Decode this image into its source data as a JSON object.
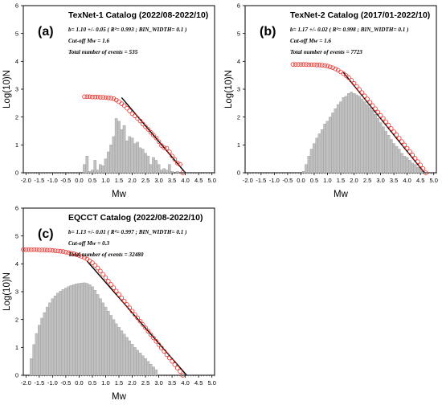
{
  "figure": {
    "background": "#ffffff"
  },
  "style": {
    "bar_fill": "#c0c0c0",
    "bar_stroke": "#8a8a8a",
    "circle_color": "#e8302a",
    "fit_color": "#000000"
  },
  "chart_data": [
    {
      "type": "bar",
      "panel": "(a)",
      "title": "TexNet-1 Catalog (2022/08-2022/10)",
      "stats": [
        "b= 1.10 +/- 0.05 ( R²= 0.993 ; BIN_WIDTH= 0.1 )",
        "Cut-off Mw = 1.6",
        "Total number of events = 535"
      ],
      "xlabel": "Mw",
      "ylabel": "Log(10)N",
      "xlim": [
        -2.1,
        5.1
      ],
      "ylim": [
        0,
        6
      ],
      "xticks": [
        "-2.0",
        "-1.5",
        "-1.0",
        "-0.5",
        "0.0",
        "0.5",
        "1.0",
        "1.5",
        "2.0",
        "2.5",
        "3.0",
        "3.5",
        "4.0",
        "4.5",
        "5.0"
      ],
      "yticks": [
        "0",
        "1",
        "2",
        "3",
        "4",
        "5",
        "6"
      ],
      "histogram": {
        "start": 0.2,
        "bin_width": 0.1,
        "values": [
          0.3,
          0.6,
          0.05,
          0.1,
          0.45,
          0.1,
          0.3,
          0.25,
          0.5,
          0.75,
          1.0,
          1.3,
          1.95,
          1.85,
          1.55,
          1.7,
          1.15,
          1.3,
          1.25,
          1.05,
          1.1,
          0.9,
          0.85,
          0.7,
          0.6,
          0.3,
          0.55,
          0.45,
          0.3,
          0.1,
          0.15,
          0.1,
          0.3,
          0.05,
          0.0,
          0.05,
          0.0,
          0.0
        ]
      },
      "cumulative": {
        "start": 0.2,
        "bin_width": 0.1,
        "values": [
          2.73,
          2.73,
          2.73,
          2.72,
          2.72,
          2.72,
          2.71,
          2.71,
          2.7,
          2.69,
          2.68,
          2.66,
          2.61,
          2.55,
          2.48,
          2.41,
          2.32,
          2.22,
          2.12,
          2.04,
          1.95,
          1.86,
          1.75,
          1.65,
          1.56,
          1.45,
          1.35,
          1.25,
          1.12,
          0.98,
          0.9,
          0.88,
          0.75,
          0.6,
          0.48,
          0.35,
          0.3,
          0.0
        ]
      },
      "fit": {
        "x": [
          1.6,
          4.0
        ],
        "y": [
          2.7,
          0.0
        ]
      }
    },
    {
      "type": "bar",
      "panel": "(b)",
      "title": "TexNet-2 Catalog (2017/01-2022/10)",
      "stats": [
        "b= 1.17 +/- 0.02 ( R²= 0.998 ; BIN_WIDTH= 0.1 )",
        "Cut-off Mw = 1.6",
        "Total number of events = 7723"
      ],
      "xlabel": "Mw",
      "ylabel": "Log(10)N",
      "xlim": [
        -2.1,
        5.1
      ],
      "ylim": [
        0,
        6
      ],
      "xticks": [
        "-2.0",
        "-1.5",
        "-1.0",
        "-0.5",
        "0.0",
        "0.5",
        "1.0",
        "1.5",
        "2.0",
        "2.5",
        "3.0",
        "3.5",
        "4.0",
        "4.5",
        "5.0"
      ],
      "yticks": [
        "0",
        "1",
        "2",
        "3",
        "4",
        "5",
        "6"
      ],
      "histogram": {
        "start": -0.3,
        "bin_width": 0.1,
        "values": [
          0.0,
          0.0,
          0.0,
          0.0,
          0.05,
          0.3,
          0.6,
          0.85,
          1.05,
          1.25,
          1.4,
          1.55,
          1.75,
          1.85,
          2.0,
          2.15,
          2.3,
          2.45,
          2.55,
          2.7,
          2.75,
          2.85,
          2.9,
          2.85,
          2.8,
          2.75,
          2.65,
          2.55,
          2.45,
          2.35,
          2.25,
          2.1,
          1.95,
          1.8,
          1.65,
          1.5,
          1.35,
          1.2,
          1.05,
          0.95,
          0.85,
          0.7,
          0.6,
          0.55,
          0.45,
          0.35,
          0.3,
          0.2,
          0.15,
          0.05,
          0.0
        ]
      },
      "cumulative": {
        "start": -0.3,
        "bin_width": 0.1,
        "values": [
          3.89,
          3.89,
          3.89,
          3.89,
          3.89,
          3.89,
          3.88,
          3.88,
          3.88,
          3.87,
          3.87,
          3.86,
          3.85,
          3.83,
          3.8,
          3.77,
          3.73,
          3.68,
          3.62,
          3.56,
          3.49,
          3.41,
          3.32,
          3.21,
          3.1,
          2.99,
          2.88,
          2.76,
          2.65,
          2.53,
          2.41,
          2.3,
          2.18,
          2.06,
          1.95,
          1.83,
          1.71,
          1.59,
          1.47,
          1.36,
          1.24,
          1.12,
          1.0,
          0.88,
          0.76,
          0.64,
          0.52,
          0.4,
          0.28,
          0.15,
          0.0
        ]
      },
      "fit": {
        "x": [
          1.6,
          4.65
        ],
        "y": [
          3.6,
          0.0
        ]
      }
    },
    {
      "type": "bar",
      "panel": "(c)",
      "title": "EQCCT Catalog (2022/08-2022/10)",
      "stats": [
        "b= 1.13 +/- 0.01 ( R²= 0.997 ; BIN_WIDTH= 0.1 )",
        "Cut-off Mw = 0.3",
        "Total number of events = 32480"
      ],
      "xlabel": "Mw",
      "ylabel": "Log(10)N",
      "xlim": [
        -2.1,
        5.1
      ],
      "ylim": [
        0,
        6
      ],
      "xticks": [
        "-2.0",
        "-1.5",
        "-1.0",
        "-0.5",
        "0.0",
        "0.5",
        "1.0",
        "1.5",
        "2.0",
        "2.5",
        "3.0",
        "3.5",
        "4.0",
        "4.5",
        "5.0"
      ],
      "yticks": [
        "0",
        "1",
        "2",
        "3",
        "4",
        "5",
        "6"
      ],
      "histogram": {
        "start": -1.8,
        "bin_width": 0.1,
        "values": [
          0.6,
          1.1,
          1.5,
          1.8,
          2.05,
          2.25,
          2.45,
          2.6,
          2.75,
          2.85,
          2.95,
          3.02,
          3.08,
          3.13,
          3.18,
          3.22,
          3.25,
          3.28,
          3.3,
          3.31,
          3.32,
          3.3,
          3.25,
          3.18,
          3.05,
          2.9,
          2.75,
          2.6,
          2.45,
          2.3,
          2.15,
          2.0,
          1.85,
          1.72,
          1.6,
          1.48,
          1.36,
          1.24,
          1.12,
          1.0,
          0.9,
          0.8,
          0.7,
          0.6,
          0.5,
          0.4,
          0.3,
          0.2,
          0.0
        ]
      },
      "cumulative": {
        "start": -2.1,
        "bin_width": 0.1,
        "values": [
          4.51,
          4.51,
          4.51,
          4.51,
          4.51,
          4.51,
          4.5,
          4.5,
          4.5,
          4.49,
          4.49,
          4.48,
          4.47,
          4.46,
          4.45,
          4.44,
          4.42,
          4.4,
          4.38,
          4.36,
          4.33,
          4.3,
          4.26,
          4.22,
          4.17,
          4.11,
          4.04,
          3.95,
          3.85,
          3.74,
          3.62,
          3.5,
          3.38,
          3.26,
          3.14,
          3.02,
          2.9,
          2.78,
          2.66,
          2.54,
          2.42,
          2.3,
          2.18,
          2.06,
          1.94,
          1.82,
          1.7,
          1.58,
          1.46,
          1.34,
          1.22,
          1.1,
          0.98,
          0.86,
          0.74,
          0.62,
          0.5,
          0.38,
          0.26,
          0.14,
          0.0
        ]
      },
      "fit": {
        "x": [
          0.3,
          4.05
        ],
        "y": [
          4.1,
          0.0
        ]
      }
    }
  ]
}
